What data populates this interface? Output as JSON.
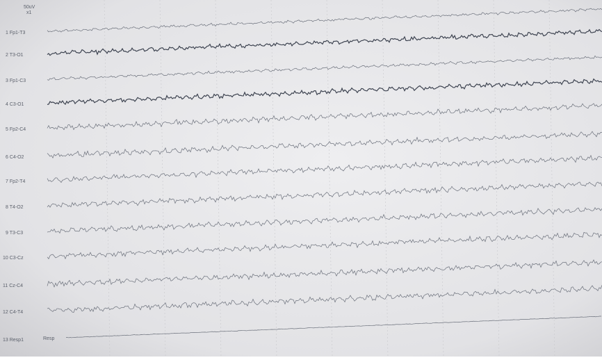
{
  "header": {
    "scale": "50uV",
    "gain": "x1"
  },
  "channels": [
    {
      "label": "1 Fp1-T3"
    },
    {
      "label": "2 T3-O1"
    },
    {
      "label": "3 Fp1-C3"
    },
    {
      "label": "4 C3-O1"
    },
    {
      "label": "5 Fp2-C4"
    },
    {
      "label": "6 C4-O2"
    },
    {
      "label": "7 Fp2-T4"
    },
    {
      "label": "8 T4-O2"
    },
    {
      "label": "9 T3-C3"
    },
    {
      "label": "10 C3-Cz"
    },
    {
      "label": "11 Cz-C4"
    },
    {
      "label": "12 C4-T4"
    },
    {
      "label": "13 Resp1"
    }
  ],
  "resp_label": "Resp"
}
